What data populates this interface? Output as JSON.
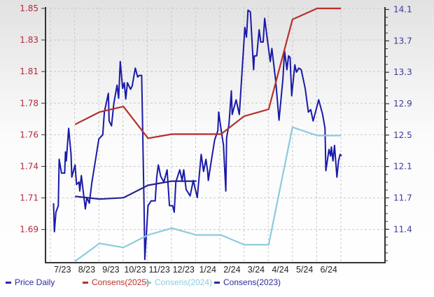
{
  "chart_data": {
    "type": "line",
    "title": "",
    "grid": true,
    "legend_placement": "bottom",
    "x_tick_labels": [
      "7/23",
      "8/23",
      "9/23",
      "10/23",
      "11/23",
      "12/23",
      "1/24",
      "2/24",
      "3/24",
      "4/24",
      "5/24",
      "6/24"
    ],
    "x_range": [
      "2023-07-01",
      "2024-07-01"
    ],
    "left_axis": {
      "tick_labels": [
        "1.69",
        "1.71",
        "1.74",
        "1.76",
        "1.78",
        "1.81",
        "1.83",
        "1.85"
      ],
      "tick_min": 1.69,
      "tick_max": 1.85,
      "ylim": [
        1.666,
        1.851
      ],
      "color": "#b3283c"
    },
    "right_axis": {
      "tick_labels": [
        "11.4",
        "11.7",
        "12.1",
        "12.5",
        "12.9",
        "13.3",
        "13.7",
        "14.1"
      ],
      "tick_min": 11.4,
      "tick_max": 14.1,
      "ylim": [
        10.99,
        14.13
      ],
      "color": "#3a3a9c"
    },
    "series": [
      {
        "name": "Price Daily",
        "axis": "right",
        "color": "#1a1aa8",
        "points": [
          [
            "2023-07-05",
            11.72
          ],
          [
            "2023-07-06",
            11.37
          ],
          [
            "2023-07-08",
            11.61
          ],
          [
            "2023-07-11",
            11.69
          ],
          [
            "2023-07-12",
            12.26
          ],
          [
            "2023-07-15",
            12.09
          ],
          [
            "2023-07-19",
            12.09
          ],
          [
            "2023-07-20",
            12.35
          ],
          [
            "2023-07-21",
            12.24
          ],
          [
            "2023-07-24",
            12.64
          ],
          [
            "2023-07-27",
            12.32
          ],
          [
            "2023-07-28",
            12.04
          ],
          [
            "2023-08-01",
            12.19
          ],
          [
            "2023-08-03",
            11.95
          ],
          [
            "2023-08-06",
            11.98
          ],
          [
            "2023-08-07",
            11.87
          ],
          [
            "2023-08-09",
            12.06
          ],
          [
            "2023-08-14",
            11.65
          ],
          [
            "2023-08-16",
            11.79
          ],
          [
            "2023-08-19",
            11.72
          ],
          [
            "2023-08-22",
            11.96
          ],
          [
            "2023-08-27",
            12.26
          ],
          [
            "2023-08-31",
            12.51
          ],
          [
            "2023-09-05",
            12.56
          ],
          [
            "2023-09-07",
            12.84
          ],
          [
            "2023-09-12",
            13.07
          ],
          [
            "2023-09-13",
            12.73
          ],
          [
            "2023-09-16",
            12.67
          ],
          [
            "2023-09-19",
            12.95
          ],
          [
            "2023-09-23",
            13.17
          ],
          [
            "2023-09-25",
            13.01
          ],
          [
            "2023-09-27",
            13.46
          ],
          [
            "2023-09-30",
            13.13
          ],
          [
            "2023-10-02",
            13.2
          ],
          [
            "2023-10-04",
            13.0
          ],
          [
            "2023-10-06",
            13.2
          ],
          [
            "2023-10-10",
            13.12
          ],
          [
            "2023-10-12",
            13.16
          ],
          [
            "2023-10-16",
            13.38
          ],
          [
            "2023-10-19",
            13.27
          ],
          [
            "2023-10-21",
            13.29
          ],
          [
            "2023-10-24",
            13.29
          ],
          [
            "2023-10-27",
            11.69
          ],
          [
            "2023-10-28",
            11.03
          ],
          [
            "2023-11-01",
            11.69
          ],
          [
            "2023-11-05",
            11.75
          ],
          [
            "2023-11-10",
            11.75
          ],
          [
            "2023-11-12",
            12.04
          ],
          [
            "2023-11-14",
            12.19
          ],
          [
            "2023-11-17",
            12.05
          ],
          [
            "2023-11-21",
            11.98
          ],
          [
            "2023-11-25",
            12.13
          ],
          [
            "2023-11-28",
            11.69
          ],
          [
            "2023-12-02",
            11.69
          ],
          [
            "2023-12-04",
            11.61
          ],
          [
            "2023-12-06",
            11.98
          ],
          [
            "2023-12-11",
            12.13
          ],
          [
            "2023-12-14",
            12.0
          ],
          [
            "2023-12-16",
            12.13
          ],
          [
            "2023-12-19",
            11.89
          ],
          [
            "2023-12-24",
            11.81
          ],
          [
            "2023-12-28",
            12.0
          ],
          [
            "2024-01-02",
            11.79
          ],
          [
            "2024-01-07",
            12.32
          ],
          [
            "2024-01-10",
            12.11
          ],
          [
            "2024-01-13",
            12.26
          ],
          [
            "2024-01-15",
            12.12
          ],
          [
            "2024-01-16",
            12.0
          ],
          [
            "2024-01-20",
            12.26
          ],
          [
            "2024-01-24",
            12.5
          ],
          [
            "2024-01-28",
            12.61
          ],
          [
            "2024-01-29",
            12.84
          ],
          [
            "2024-02-02",
            12.56
          ],
          [
            "2024-02-04",
            12.44
          ],
          [
            "2024-02-07",
            11.87
          ],
          [
            "2024-02-08",
            12.52
          ],
          [
            "2024-02-11",
            12.69
          ],
          [
            "2024-02-14",
            13.1
          ],
          [
            "2024-02-15",
            12.81
          ],
          [
            "2024-02-20",
            12.99
          ],
          [
            "2024-02-24",
            12.81
          ],
          [
            "2024-02-28",
            13.42
          ],
          [
            "2024-03-02",
            13.88
          ],
          [
            "2024-03-04",
            13.76
          ],
          [
            "2024-03-06",
            14.09
          ],
          [
            "2024-03-09",
            14.07
          ],
          [
            "2024-03-13",
            13.36
          ],
          [
            "2024-03-14",
            13.53
          ],
          [
            "2024-03-17",
            13.53
          ],
          [
            "2024-03-20",
            13.85
          ],
          [
            "2024-03-22",
            13.7
          ],
          [
            "2024-03-25",
            13.7
          ],
          [
            "2024-03-27",
            13.99
          ],
          [
            "2024-03-30",
            13.76
          ],
          [
            "2024-04-03",
            13.46
          ],
          [
            "2024-04-05",
            13.62
          ],
          [
            "2024-04-10",
            13.21
          ],
          [
            "2024-04-14",
            12.74
          ],
          [
            "2024-04-19",
            13.25
          ],
          [
            "2024-04-21",
            13.59
          ],
          [
            "2024-04-24",
            13.36
          ],
          [
            "2024-04-26",
            13.53
          ],
          [
            "2024-04-28",
            13.51
          ],
          [
            "2024-04-30",
            13.04
          ],
          [
            "2024-05-04",
            13.42
          ],
          [
            "2024-05-06",
            13.33
          ],
          [
            "2024-05-09",
            13.38
          ],
          [
            "2024-05-12",
            13.36
          ],
          [
            "2024-05-17",
            13.13
          ],
          [
            "2024-05-21",
            12.84
          ],
          [
            "2024-05-24",
            12.87
          ],
          [
            "2024-05-27",
            12.73
          ],
          [
            "2024-06-03",
            12.99
          ],
          [
            "2024-06-08",
            12.81
          ],
          [
            "2024-06-11",
            12.64
          ],
          [
            "2024-06-12",
            12.12
          ],
          [
            "2024-06-16",
            12.38
          ],
          [
            "2024-06-18",
            12.3
          ],
          [
            "2024-06-19",
            12.41
          ],
          [
            "2024-06-21",
            12.24
          ],
          [
            "2024-06-23",
            12.43
          ],
          [
            "2024-06-26",
            12.04
          ],
          [
            "2024-06-28",
            12.24
          ],
          [
            "2024-06-30",
            12.32
          ],
          [
            "2024-07-02",
            12.3
          ]
        ]
      },
      {
        "name": "Consens(2025)",
        "axis": "left",
        "color": "#b8302a",
        "points": [
          [
            "2023-08-01",
            1.766
          ],
          [
            "2023-09-01",
            1.775
          ],
          [
            "2023-10-01",
            1.779
          ],
          [
            "2023-11-01",
            1.756
          ],
          [
            "2023-12-01",
            1.759
          ],
          [
            "2024-01-01",
            1.759
          ],
          [
            "2024-02-01",
            1.759
          ],
          [
            "2024-03-01",
            1.772
          ],
          [
            "2024-04-01",
            1.777
          ],
          [
            "2024-05-01",
            1.842
          ],
          [
            "2024-06-01",
            1.85
          ],
          [
            "2024-07-01",
            1.85
          ]
        ]
      },
      {
        "name": "Consens(2024)",
        "axis": "left",
        "color": "#8ccbdd",
        "points": [
          [
            "2023-08-01",
            1.667
          ],
          [
            "2023-09-01",
            1.68
          ],
          [
            "2023-10-01",
            1.677
          ],
          [
            "2023-11-01",
            1.686
          ],
          [
            "2023-12-01",
            1.691
          ],
          [
            "2024-01-01",
            1.686
          ],
          [
            "2024-02-01",
            1.686
          ],
          [
            "2024-03-01",
            1.679
          ],
          [
            "2024-04-01",
            1.679
          ],
          [
            "2024-05-01",
            1.764
          ],
          [
            "2024-06-01",
            1.758
          ],
          [
            "2024-07-01",
            1.758
          ]
        ]
      },
      {
        "name": "Consens(2023)",
        "axis": "left",
        "color": "#23238f",
        "points": [
          [
            "2023-08-01",
            1.714
          ],
          [
            "2023-09-01",
            1.712
          ],
          [
            "2023-10-01",
            1.713
          ],
          [
            "2023-11-01",
            1.722
          ],
          [
            "2023-12-01",
            1.725
          ],
          [
            "2024-01-01",
            1.725
          ]
        ]
      }
    ]
  },
  "legend": [
    {
      "label": "Price Daily",
      "color": "#2a2aa8"
    },
    {
      "label": "Consens(2025)",
      "color": "#b8302a"
    },
    {
      "label": "Consens(2024)",
      "color": "#8ccbdd"
    },
    {
      "label": "Consens(2023)",
      "color": "#2a2a9a"
    }
  ]
}
